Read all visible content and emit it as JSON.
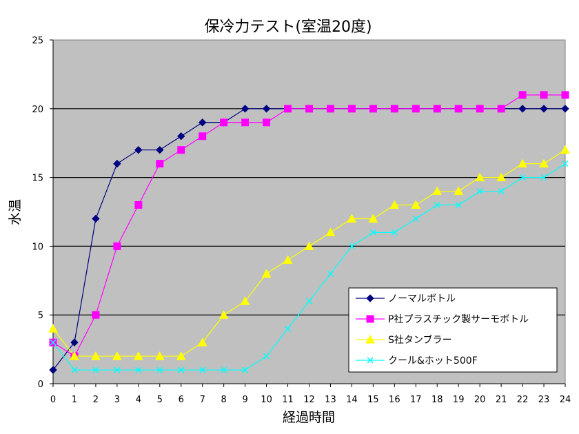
{
  "chart_data": {
    "type": "line",
    "title": "保冷力テスト(室温20度)",
    "xlabel": "経過時間",
    "ylabel": "水温",
    "x": [
      0,
      1,
      2,
      3,
      4,
      5,
      6,
      7,
      8,
      9,
      10,
      11,
      12,
      13,
      14,
      15,
      16,
      17,
      18,
      19,
      20,
      21,
      22,
      23,
      24
    ],
    "ylim": [
      0,
      25
    ],
    "yticks": [
      0,
      5,
      10,
      15,
      20,
      25
    ],
    "grid": "horizontal",
    "background": "#c0c0c0",
    "legend_position": "bottom-right",
    "series": [
      {
        "name": "ノーマルボトル",
        "color": "#000080",
        "marker": "diamond",
        "values": [
          1,
          3,
          12,
          16,
          17,
          17,
          18,
          19,
          19,
          20,
          20,
          20,
          20,
          20,
          20,
          20,
          20,
          20,
          20,
          20,
          20,
          20,
          20,
          20,
          20
        ]
      },
      {
        "name": "P社プラスチック製サーモボトル",
        "color": "#ff00ff",
        "marker": "square",
        "values": [
          3,
          2,
          5,
          10,
          13,
          16,
          17,
          18,
          19,
          19,
          19,
          20,
          20,
          20,
          20,
          20,
          20,
          20,
          20,
          20,
          20,
          20,
          21,
          21,
          21
        ]
      },
      {
        "name": "S社タンブラー",
        "color": "#ffff00",
        "marker": "triangle",
        "values": [
          4,
          2,
          2,
          2,
          2,
          2,
          2,
          3,
          5,
          6,
          8,
          9,
          10,
          11,
          12,
          12,
          13,
          13,
          14,
          14,
          15,
          15,
          16,
          16,
          17
        ]
      },
      {
        "name": "クール&ホット500F",
        "color": "#00ffff",
        "marker": "x",
        "values": [
          3,
          1,
          1,
          1,
          1,
          1,
          1,
          1,
          1,
          1,
          2,
          4,
          6,
          8,
          10,
          11,
          11,
          12,
          13,
          13,
          14,
          14,
          15,
          15,
          16
        ]
      }
    ]
  }
}
